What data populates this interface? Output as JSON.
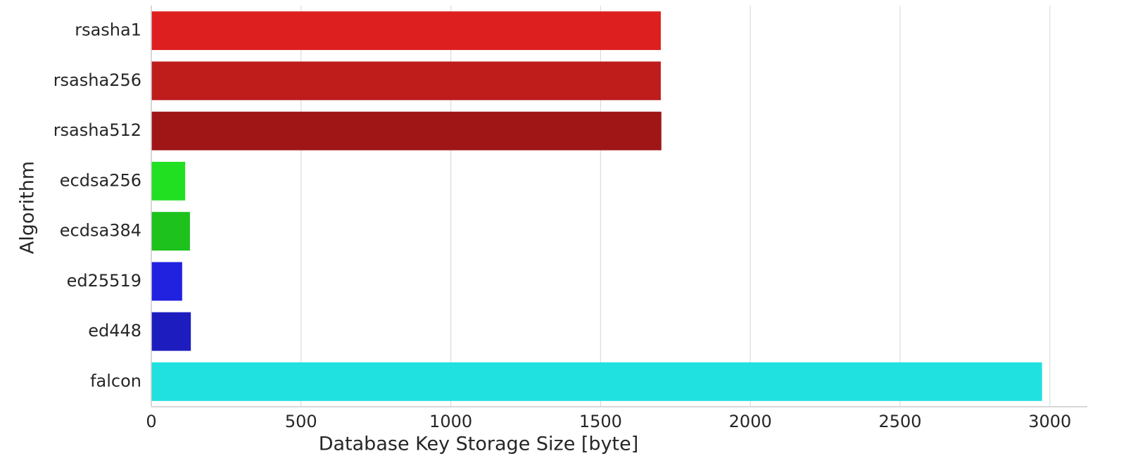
{
  "chart_data": {
    "type": "bar",
    "orientation": "horizontal",
    "xlabel": "Database Key Storage Size [byte]",
    "ylabel": "Algorithm",
    "categories": [
      "rsasha1",
      "rsasha256",
      "rsasha512",
      "ecdsa256",
      "ecdsa384",
      "ed25519",
      "ed448",
      "falcon"
    ],
    "values": [
      1701,
      1701,
      1703,
      113,
      129,
      103,
      132,
      2974
    ],
    "colors": [
      "#de1f1f",
      "#bf1c1c",
      "#a01616",
      "#21e021",
      "#1dc21d",
      "#2121e0",
      "#1d1dbf",
      "#21e0e0"
    ],
    "xlim": [
      0,
      3125
    ],
    "xticks": [
      0,
      500,
      1000,
      1500,
      2000,
      2500,
      3000
    ],
    "grid": true
  }
}
